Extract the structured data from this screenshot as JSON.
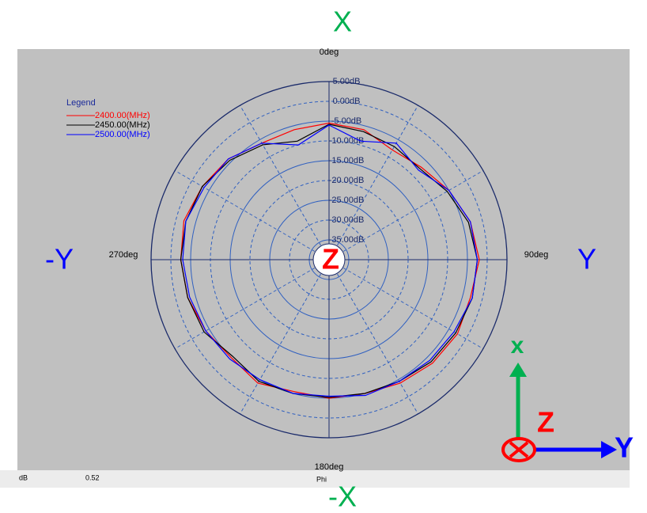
{
  "chart_data": {
    "type": "polar",
    "legend_title": "Legend",
    "theta": [
      0,
      15,
      30,
      45,
      60,
      75,
      90,
      105,
      120,
      135,
      150,
      165,
      180,
      195,
      210,
      225,
      240,
      255,
      270,
      285,
      300,
      315,
      330,
      345
    ],
    "series": [
      {
        "name": "2400.00(MHz)",
        "color": "#ff0000",
        "values": [
          -5.5,
          -6,
          -8,
          -7,
          -5,
          -3,
          -2,
          -3,
          -2.5,
          -3,
          -4,
          -5,
          -5,
          -5.5,
          -4,
          -5,
          -4,
          -3,
          -2.5,
          -2,
          -3,
          -4,
          -6,
          -6
        ]
      },
      {
        "name": "2450.00(MHz)",
        "color": "#000000",
        "values": [
          -5.8,
          -6.5,
          -7,
          -7.5,
          -5.5,
          -3.5,
          -2.5,
          -2.5,
          -3,
          -3.5,
          -4.5,
          -5,
          -5.2,
          -5,
          -4.5,
          -5.5,
          -3.5,
          -3,
          -2.5,
          -2.5,
          -3,
          -4.5,
          -6.5,
          -9
        ]
      },
      {
        "name": "2500.00(MHz)",
        "color": "#0000ff",
        "values": [
          -6,
          -9,
          -6,
          -8,
          -5,
          -3,
          -2.5,
          -2.5,
          -3.5,
          -4,
          -4.5,
          -4.5,
          -5.5,
          -5,
          -5,
          -4.5,
          -4,
          -3.5,
          -3,
          -2.5,
          -3.5,
          -4,
          -6,
          -10
        ]
      }
    ],
    "rlim": [
      -40,
      5
    ],
    "rticks": [
      {
        "value": 5,
        "label": "5.00dB"
      },
      {
        "value": 0,
        "label": "0.00dB"
      },
      {
        "value": -5,
        "label": "-5.00dB"
      },
      {
        "value": -10,
        "label": "-10.00dB"
      },
      {
        "value": -15,
        "label": "-15.00dB"
      },
      {
        "value": -20,
        "label": "-20.00dB"
      },
      {
        "value": -25,
        "label": "-25.00dB"
      },
      {
        "value": -30,
        "label": "-30.00dB"
      },
      {
        "value": -35,
        "label": "-35.00dB"
      }
    ],
    "thetaticks": [
      {
        "value": 0,
        "label": "0deg"
      },
      {
        "value": 90,
        "label": "90deg"
      },
      {
        "value": 180,
        "label": "180deg"
      },
      {
        "value": 270,
        "label": "270deg"
      }
    ]
  },
  "annotations": {
    "top": "X",
    "bottom": "-X",
    "left": "-Y",
    "right": "Y",
    "center": "Z",
    "icon_x": "x",
    "icon_z": "Z",
    "icon_y": "Y"
  },
  "status_bar": {
    "unit": "dB",
    "value": "0.52",
    "axis": "Phi"
  }
}
